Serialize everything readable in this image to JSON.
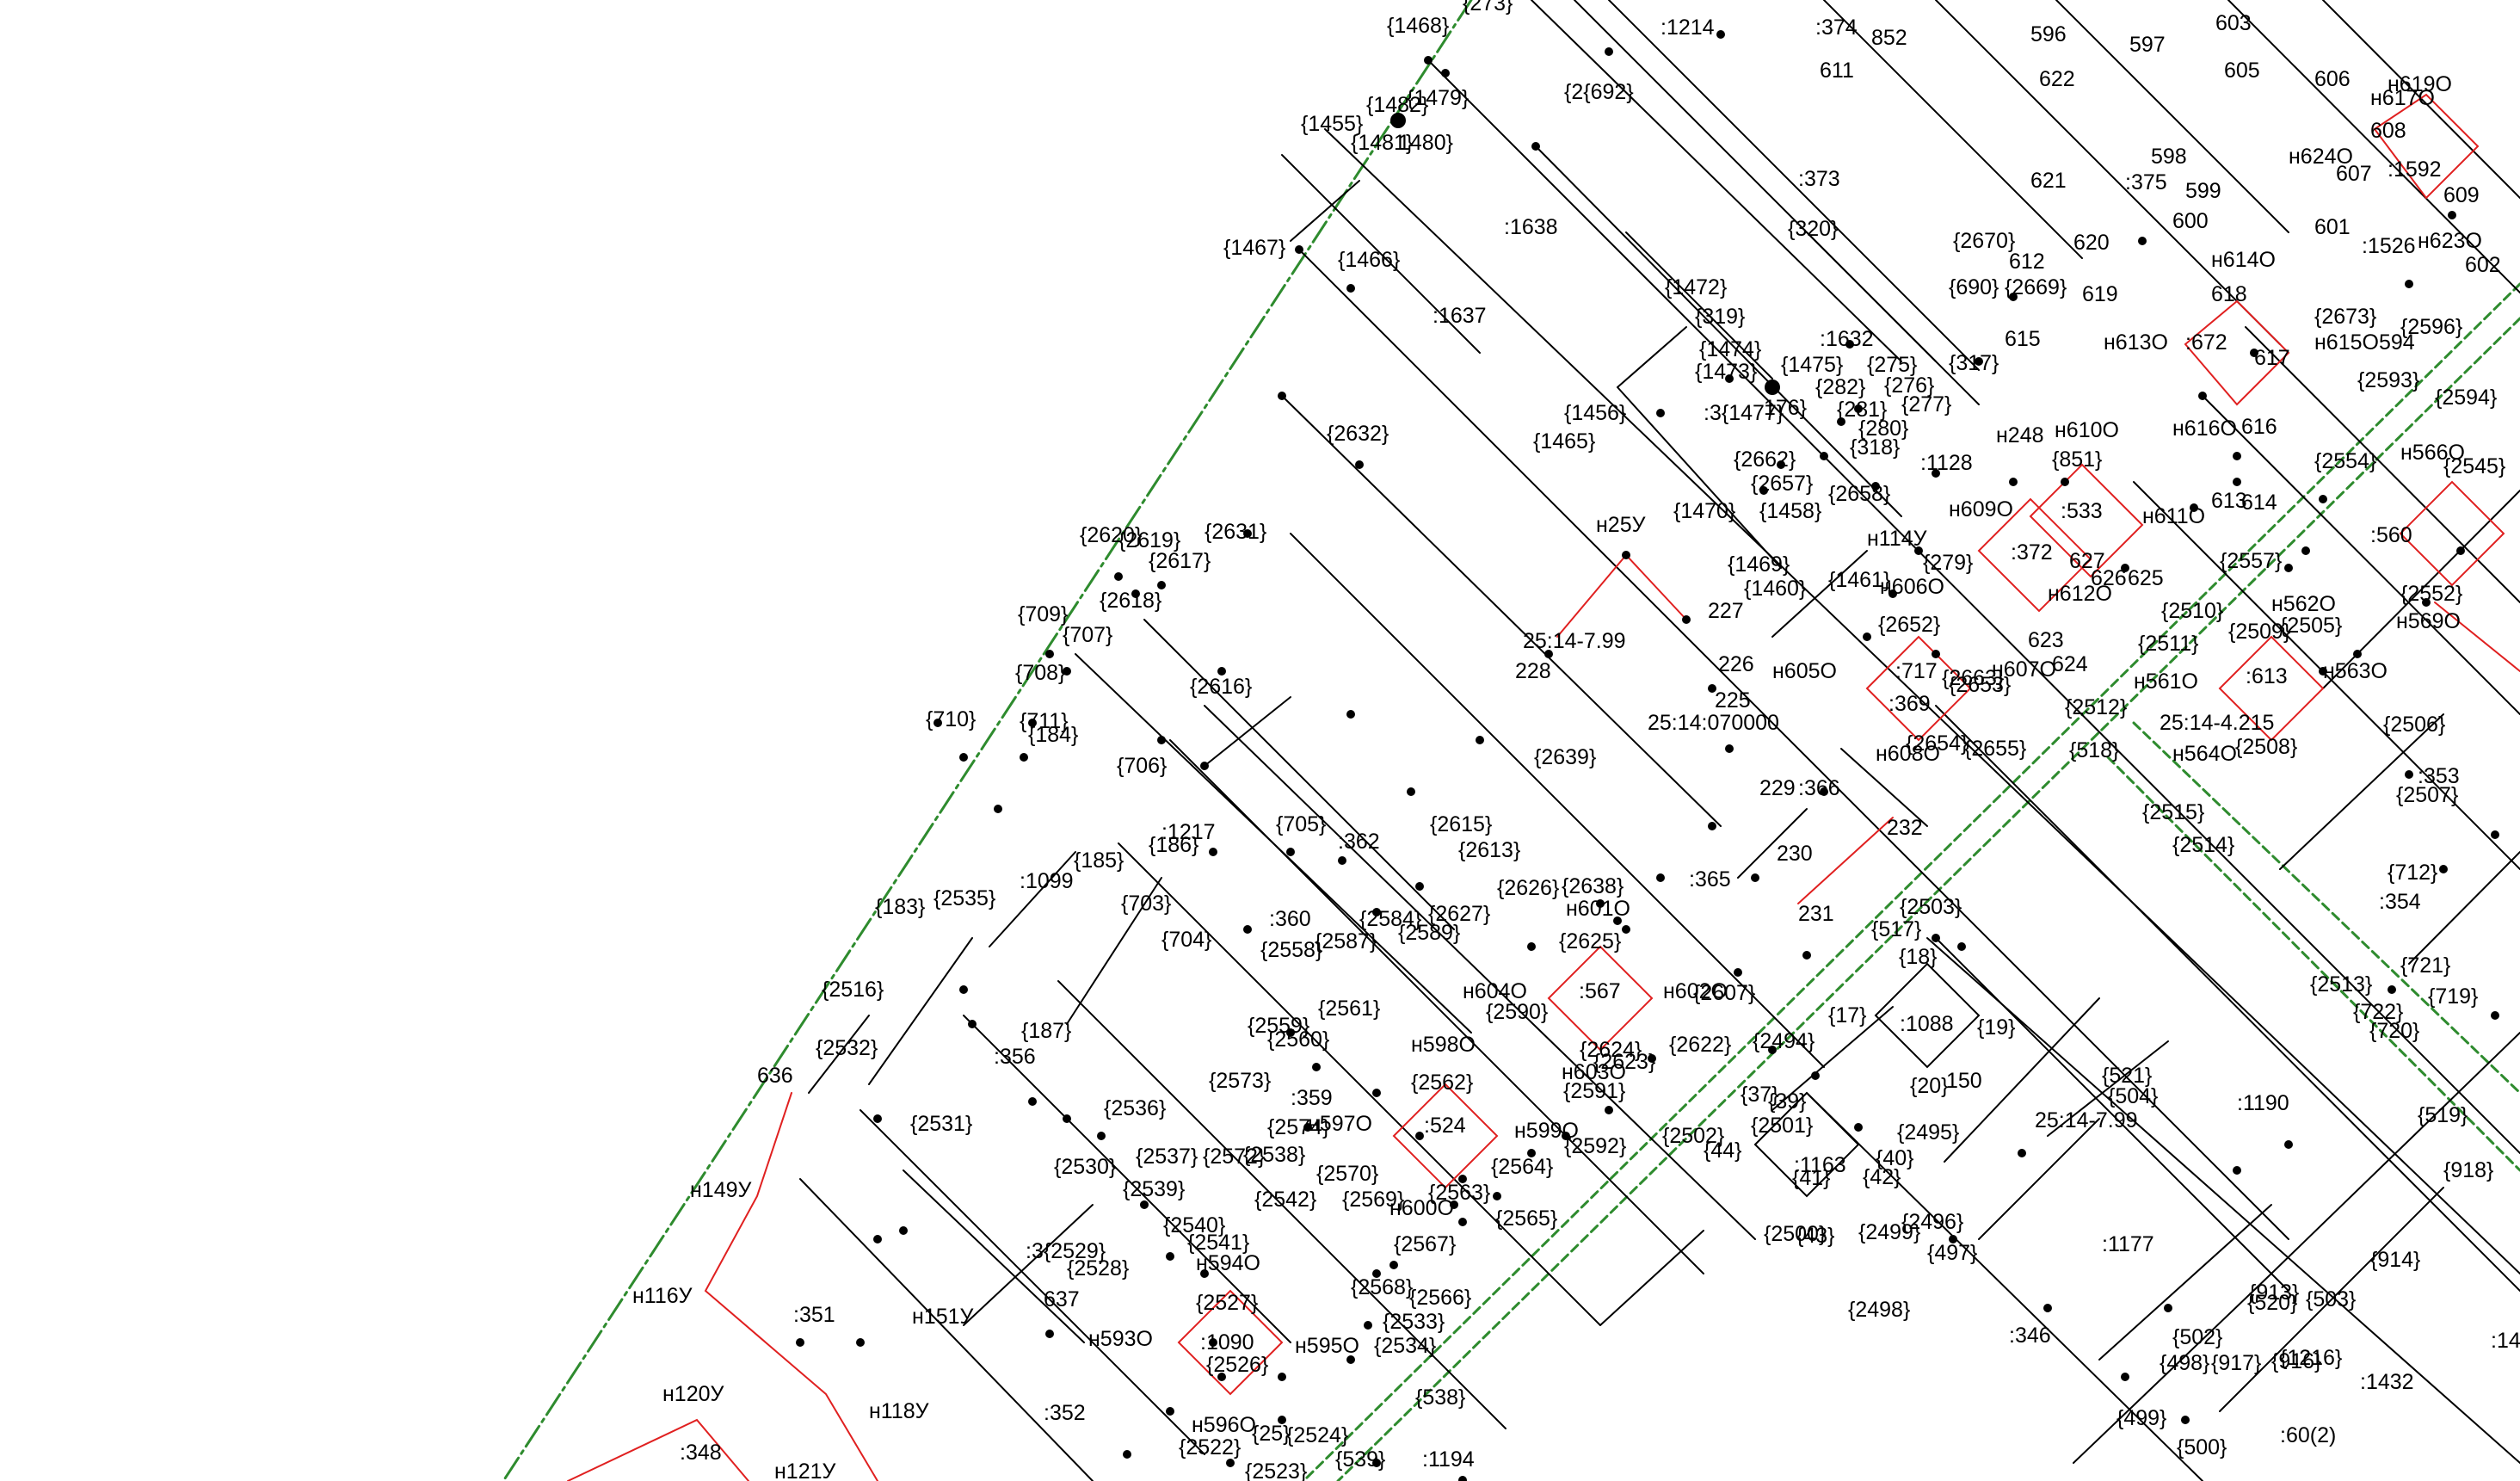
{
  "map": {
    "colors": {
      "parcel": "#000000",
      "boundary": "#2e8b2e",
      "red_line": "#e02020",
      "background": "#ffffff"
    },
    "labels": {
      "l1468": "{1468}",
      "l273": "{273}",
      "l1214": ":1214",
      "l374": ":374",
      "l852": "852",
      "l596": "596",
      "l597": "597",
      "l603": "603",
      "l605": "605",
      "l606": "606",
      "lh619o": "н619О",
      "lh617o": "н617О",
      "l1479": "{1479}",
      "l1482": "{1482}",
      "l1455": "{1455}",
      "l1481": "{1481}",
      "l1480": "1480}",
      "l2692": "{2{692}",
      "l611": "611",
      "l622": "622",
      "l598": "598",
      "l375": ":375",
      "l599": "599",
      "lh624o": "н624О",
      "l607": "607",
      "l1592": ":1592",
      "l609": "609",
      "l608": "608",
      "l1638": ":1638",
      "l373": ":373",
      "l621": "621",
      "l600": "600",
      "l601": "601",
      "l1526": ":1526",
      "lh623o": "н623О",
      "l602": "602",
      "l1467": "{1467}",
      "l1466": "{1466}",
      "l320": "{320}",
      "l2670": "{2670}",
      "l612": "612",
      "l620": "620",
      "lh614o": "н614О",
      "l690": "{690}",
      "l2669": "{2669}",
      "l1472": "{1472}",
      "l619": "619",
      "l618": "618",
      "l2673": "{2673}",
      "l2596": "{2596}",
      "l1637": ":1637",
      "l319": "{319}",
      "l1632": ":1632",
      "l615": "615",
      "lh613o": "н613О",
      "l672": ":672",
      "l617": "617",
      "lh615o": "н615О594",
      "l1474": "{1474}",
      "l1475": "{1475}",
      "l275": "{275}",
      "l317": "{317}",
      "l1473": "{1473}",
      "l282": "{282}",
      "l276": "{276}",
      "l2593": "{2593}",
      "l2594": "{2594}",
      "l2632": "{2632}",
      "l3714": ":3{1477}",
      "l1476": "176}",
      "l281": "{281}",
      "l277": "{277}",
      "l1456": "{1456}",
      "l280": "{280}",
      "lh248": "н248",
      "lh610o": "н610О",
      "lh616o": "н616О",
      "l616": "616",
      "l1465": "{1465}",
      "l318": "{318}",
      "l2662": "{2662}",
      "l1128": ":1128",
      "l851": "{851}",
      "l2554": "{2554}",
      "lh566o": "н566О",
      "l2545": "{2545}",
      "l2657": "{2657}",
      "l2658": "{2658}",
      "l1470": "{1470}",
      "l1458": "{1458}",
      "lh609o": "н609О",
      "l533": ":533",
      "l613": "613",
      "l614": "614",
      "lh611o": "н611О",
      "l2620": "{2620}",
      "l2619": "{2619}",
      "l2631": "{2631}",
      "lh25u": "н25У",
      "lh114u": "н114У",
      "l279": "{279}",
      "l372": ":372",
      "l627": "627",
      "l626": "626",
      "l625": "625",
      "l2617": "{2617}",
      "l1469": "{1469}",
      "l1461": "{1461}",
      "lh606o": "н606О",
      "l2557": "{2557}",
      "l560": ":560",
      "l1460": "{1460}",
      "lh612o": "н612О",
      "l2618": "{2618}",
      "l227": "227",
      "l2652": "{2652}",
      "lh562o": "н562О",
      "l2552": "{2552}",
      "l709": "{709}",
      "l707": "{707}",
      "l251479": "25:14-7.99",
      "l623": "623",
      "l2510": "{2510}",
      "l2509": "{2509}",
      "l2505": "{2505}",
      "lh569o": "н569О",
      "l226": "226",
      "l228": "228",
      "l624": "624",
      "l2511": "{2511}",
      "l708": "{708}",
      "l2616": "{2616}",
      "lh605o": "н605О",
      "l717": ":717",
      "l2663": "{2663}",
      "lh607o": "н607О",
      "lh563o": "н563О",
      "lh561o": "н561О",
      "l613b": ":613",
      "l369": ":369",
      "l2653": "{2653}",
      "l225": "225",
      "l2512": "{2512}",
      "l710": "{710}",
      "l711": "{711}",
      "l25140700": "25:14:070000",
      "l2514215": "25:14-4.215",
      "l2506": "{2506}",
      "l184": "{184}",
      "l2654": "{2654}",
      "l2655": "{2655}",
      "lh608o": "н608О",
      "lh564o": "н564О",
      "l2508": "{2508}",
      "l706": "{706}",
      "l2639": "{2639}",
      "l518": "{518}",
      "l353": ":353",
      "l229": "229",
      "l366": ":366",
      "l2507": "{2507}",
      "l2615": "{2615}",
      "l2515": "{2515}",
      "l1217": ":1217",
      "l705": "{705}",
      "l362": ":362",
      "l2613": "{2613}",
      "l2514": "{2514}",
      "l232": "232",
      "l186": "{186}",
      "l230": "230",
      "l712": "{712}",
      "l185": "{185}",
      "l1099": ":1099",
      "l2626": "{2626}",
      "l2638": "{2638}",
      "l365": ":365",
      "l183": "{183}",
      "l2535": "{2535}",
      "l703": "{703}",
      "lh601o": "н601О",
      "l231": "231",
      "l2503": "{2503}",
      "l354": ":354",
      "l360": ":360",
      "l2584": "{2584}",
      "l2627": "{2627}",
      "l2589": "{2589}",
      "l704": "{704}",
      "l2587": "{2587}",
      "l2558": "{2558}",
      "l517": "{517}",
      "l2625": "{2625}",
      "l18": "{18}",
      "l2516": "{2516}",
      "lh604o": "н604О",
      "l567": ":567",
      "lh602o": "н602О",
      "l2607": "{2607}",
      "l2513": "{2513}",
      "l721": "{721}",
      "l719": "{719}",
      "l2561": "{2561}",
      "l2590": "{2590}",
      "l17": "{17}",
      "l1088": ":1088",
      "l19": "{19}",
      "l722": "{722}",
      "l720": "{720}",
      "l2532": "{2532}",
      "l187": "{187}",
      "l2559": "{2559}",
      "l2560": "{2560}",
      "lh598o": "н598О",
      "l2624": "{2624}",
      "l2622": "{2622}",
      "l2494": "{2494}",
      "l356": ":356",
      "l2623": "{2623}",
      "lh603o": "н603О",
      "l636": "636",
      "l2573": "{2573}",
      "l2562": "{2562}",
      "l2591": "{2591}",
      "l20": "{20}",
      "l150": "150",
      "l521": "{521}",
      "l504": "{504}",
      "l359": ":359",
      "l1190": ":1190",
      "l2536": "{2536}",
      "l37": "{37}",
      "l39": "{39}",
      "l2531": "{2531}",
      "l2574": "{2574}",
      "lh597o": "н597О",
      "l524": ":524",
      "lh599o": "н599О",
      "l2592": "{2592}",
      "l2502": "{2502}",
      "l2501": "{2501}",
      "l2495": "{2495}",
      "l251479b": "25:14-7.99",
      "l519": "{519}",
      "l44": "{44}",
      "l2537": "{2537}",
      "l2572": "{2572}",
      "l2538": "{2538}",
      "l2564": "{2564}",
      "l40": "{40}",
      "l1163": ":1163",
      "l2530": "{2530}",
      "lh149u": "н149У",
      "l2570": "{2570}",
      "l41": "{41}",
      "l42": "{42}",
      "l918": "{918}",
      "l2539": "{2539}",
      "l2542": "{2542}",
      "l2569": "{2569}",
      "l2563": "{2563}",
      "lh600o": "н600О",
      "l2565": "{2565}",
      "l2540": "{2540}",
      "l2496": "{2496}",
      "l2500": "{2500}",
      "l43": "{43}",
      "l2499": "{2499}",
      "l2541": "{2541}",
      "l1177": ":1177",
      "l497": "{497}",
      "lh594o": "н594О",
      "l2567": "{2567}",
      "l3529": ":3{2529}",
      "l914": "{914}",
      "l2528": "{2528}",
      "l2568": "{2568}",
      "l2566": "{2566}",
      "lh116u": "н116У",
      "l637": "637",
      "l913": "{913}",
      "l503": "{503}",
      "l520": "{520}",
      "l2527": "{2527}",
      "l2498": "{2498}",
      "l351": ":351",
      "lh151u": "н151У",
      "l2533": "{2533}",
      "l346": ":346",
      "l502": "{502}",
      "l1432": ":14",
      "lh593o": "н593О",
      "l1090": ":1090",
      "lh595o": "н595О",
      "l2534": "{2534}",
      "l498": "{498}",
      "l917": "{917}",
      "l916": "{916}",
      "l1216": "{1216}",
      "l2526": "{2526}",
      "l1432b": ":1432",
      "lh120u": "н120У",
      "l538": "{538}",
      "lh118u": "н118У",
      "l352": ":352",
      "l499": "{499}",
      "l348": ":348",
      "lh596o": "н596О",
      "l2525": "{25}",
      "l2524": "{2524}",
      "l2522": "{2522}",
      "l500": "{500}",
      "l602b": ":60(2)",
      "lh121u": "н121У",
      "l539": "{539}",
      "l1194": ":1194",
      "l2523": "{2523}"
    }
  }
}
